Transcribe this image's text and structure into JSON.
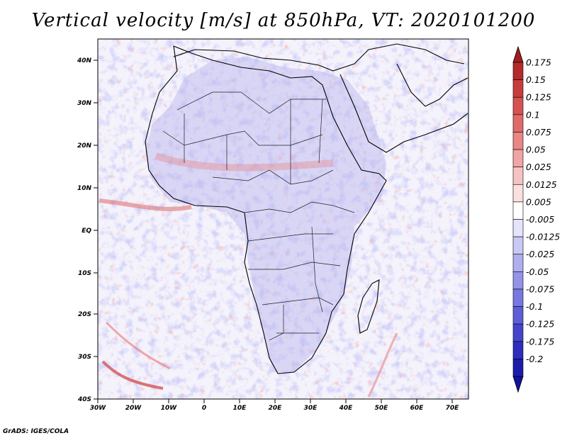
{
  "title": "Vertical velocity [m/s] at 850hPa, VT: 2020101200",
  "credit": "GrADS: IGES/COLA",
  "map": {
    "lon_ticks": [
      "30W",
      "20W",
      "10W",
      "0",
      "10E",
      "20E",
      "30E",
      "40E",
      "50E",
      "60E",
      "70E"
    ],
    "lat_ticks": [
      "40N",
      "30N",
      "20N",
      "10N",
      "EQ",
      "10S",
      "20S",
      "30S",
      "40S"
    ]
  },
  "colorbar": {
    "levels": [
      {
        "label": "0.175",
        "color": "#b52a2a"
      },
      {
        "label": "0.15",
        "color": "#c83c3c"
      },
      {
        "label": "0.125",
        "color": "#d65252"
      },
      {
        "label": "0.1",
        "color": "#e06a6a"
      },
      {
        "label": "0.075",
        "color": "#ea8686"
      },
      {
        "label": "0.05",
        "color": "#f1a4a4"
      },
      {
        "label": "0.025",
        "color": "#f6c3c3"
      },
      {
        "label": "0.0125",
        "color": "#fbe0e0"
      },
      {
        "label": "0.005",
        "color": "#ffffff"
      },
      {
        "label": "-0.005",
        "color": "#e4e4fb"
      },
      {
        "label": "-0.0125",
        "color": "#c9c9f6"
      },
      {
        "label": "-0.025",
        "color": "#aeaef1"
      },
      {
        "label": "-0.05",
        "color": "#9393ea"
      },
      {
        "label": "-0.075",
        "color": "#7878e2"
      },
      {
        "label": "-0.1",
        "color": "#5e5ed8"
      },
      {
        "label": "-0.125",
        "color": "#4545cc"
      },
      {
        "label": "-0.175",
        "color": "#2e2ebc"
      },
      {
        "label": "-0.2",
        "color": "#1c1cab"
      }
    ],
    "top_arrow_color": "#a01e1e",
    "bottom_arrow_color": "#12129a"
  }
}
